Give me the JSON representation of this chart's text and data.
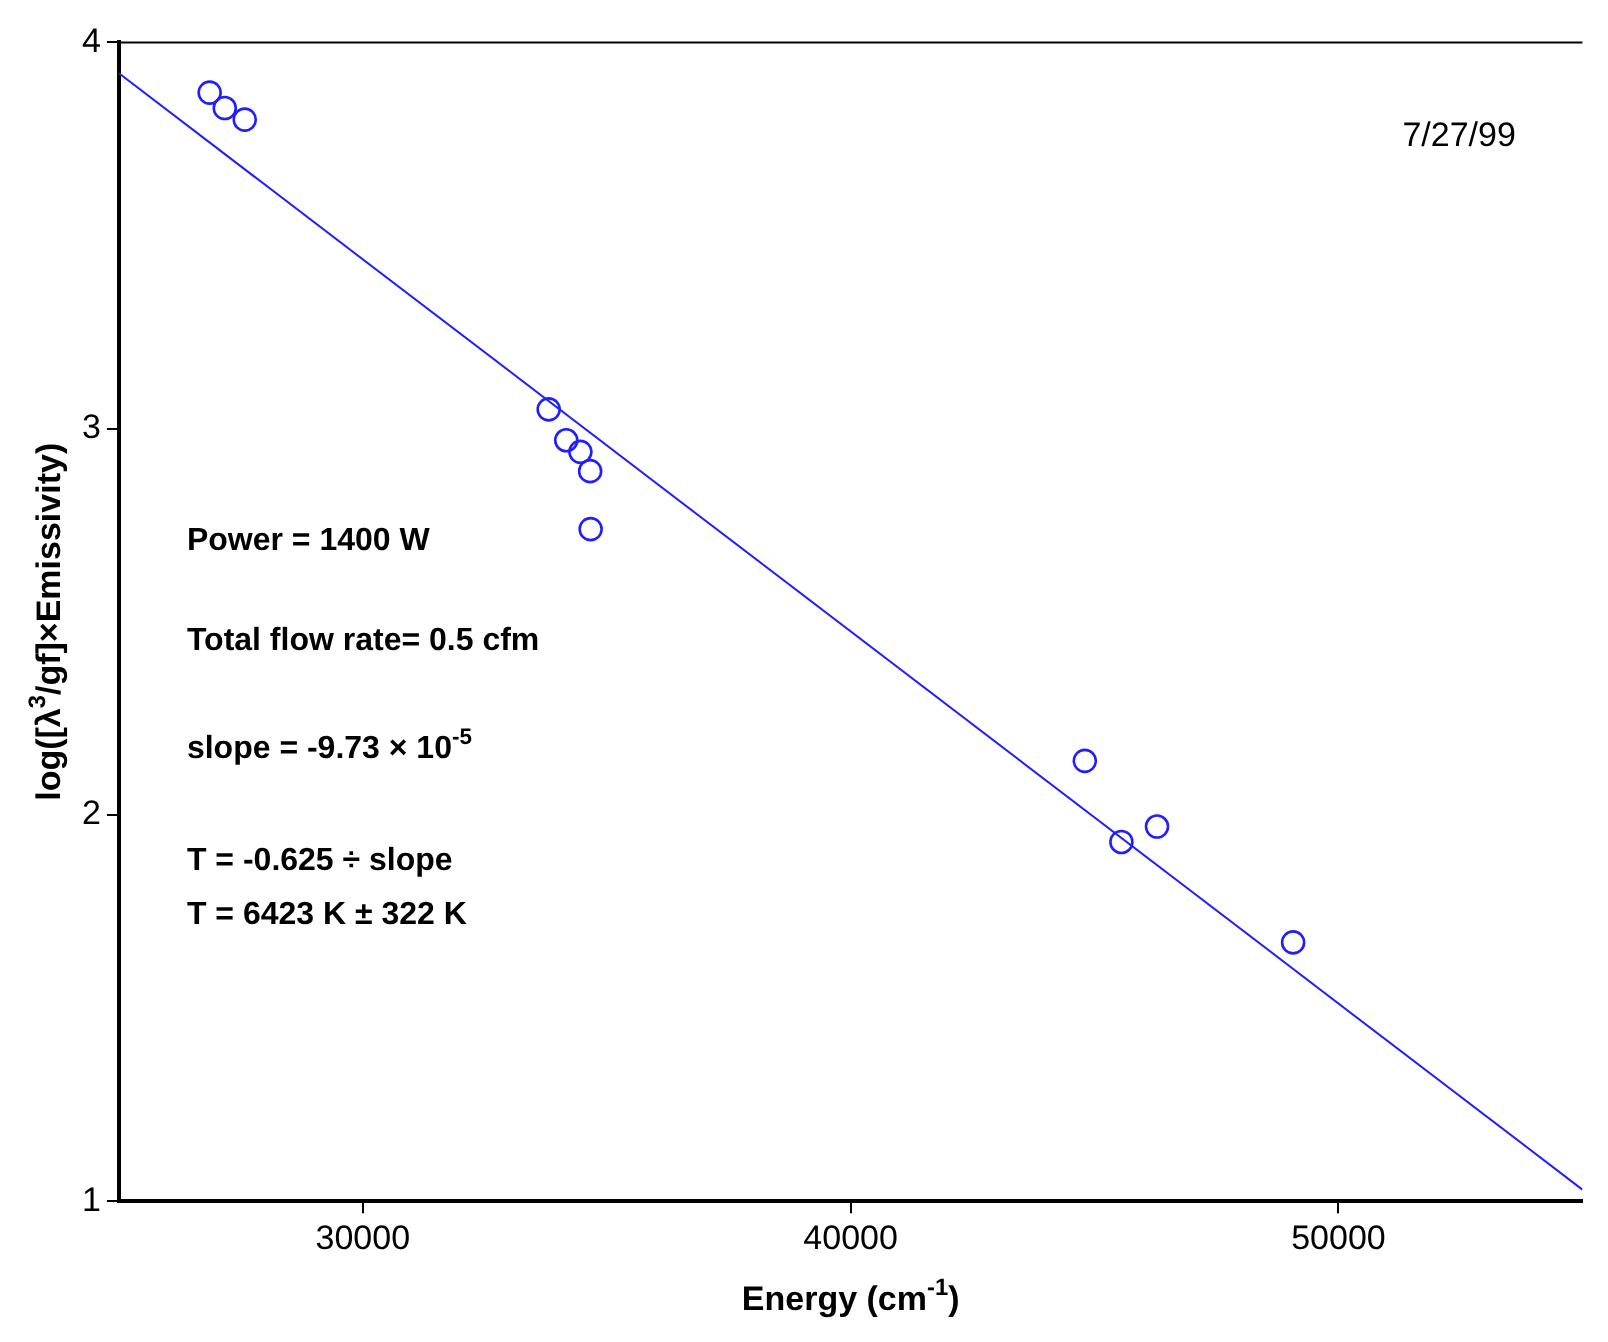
{
  "chart_data": {
    "type": "scatter",
    "xlabel": "Energy (cm$^{-1}$)",
    "ylabel": "log([λ$^{3}$/gf]×Emissivity)",
    "xlim": [
      25000,
      55000
    ],
    "ylim": [
      1,
      4
    ],
    "xticks": [
      30000,
      40000,
      50000
    ],
    "yticks": [
      1,
      2,
      3,
      4
    ],
    "grid": false,
    "legend": false,
    "series": [
      {
        "type": "scatter",
        "marker": "circle",
        "color": "#1f1fff",
        "x": [
          26860,
          27170,
          27580,
          33810,
          34170,
          34460,
          34660,
          34670,
          44800,
          45550,
          46280,
          49070
        ],
        "values": [
          3.87,
          3.83,
          3.8,
          3.05,
          2.97,
          2.94,
          2.89,
          2.74,
          2.14,
          1.93,
          1.97,
          1.67
        ]
      },
      {
        "type": "line",
        "marker": "none",
        "color": "#1f1fff",
        "x": [
          25000,
          55000
        ],
        "values": [
          3.92,
          1.03
        ]
      }
    ],
    "annotations": [
      "7/27/99",
      "Power = 1400 W",
      "Total flow rate= 0.5 cfm",
      "slope = -9.73 × 10$^{-5}$",
      "T = -0.625 ÷ slope",
      "T = 6423 K ± 322 K"
    ]
  }
}
